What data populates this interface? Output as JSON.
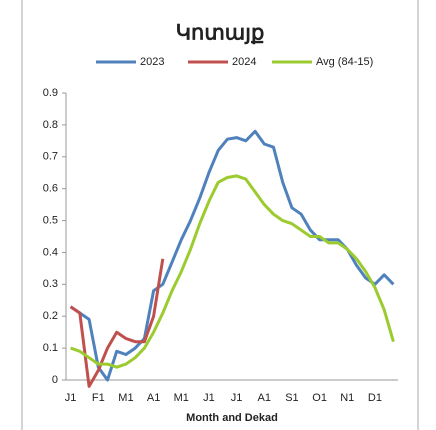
{
  "chart_data": {
    "type": "line",
    "title": "Կոտայք",
    "x_label": "Month and Dekad",
    "categories": [
      "J1",
      null,
      null,
      "F1",
      null,
      null,
      "M1",
      null,
      null,
      "A1",
      null,
      null,
      "M1",
      null,
      null,
      "J1",
      null,
      null,
      "J1",
      null,
      null,
      "A1",
      null,
      null,
      "S1",
      null,
      null,
      "O1",
      null,
      null,
      "N1",
      null,
      null,
      "D1",
      null,
      null
    ],
    "series": [
      {
        "name": "2023",
        "color": "#4f81bd",
        "values": [
          0.23,
          0.21,
          0.19,
          0.04,
          0.0,
          0.09,
          0.08,
          0.1,
          0.13,
          0.28,
          0.3,
          0.37,
          0.44,
          0.5,
          0.57,
          0.65,
          0.72,
          0.755,
          0.76,
          0.75,
          0.78,
          0.74,
          0.73,
          0.62,
          0.54,
          0.52,
          0.47,
          0.44,
          0.44,
          0.44,
          0.41,
          0.36,
          0.32,
          0.3,
          0.33,
          0.3
        ]
      },
      {
        "name": "2024",
        "color": "#c0504d",
        "values": [
          0.23,
          0.21,
          -0.02,
          0.03,
          0.1,
          0.15,
          0.13,
          0.12,
          0.12,
          0.2,
          0.38,
          null,
          null,
          null,
          null,
          null,
          null,
          null,
          null,
          null,
          null,
          null,
          null,
          null,
          null,
          null,
          null,
          null,
          null,
          null,
          null,
          null,
          null,
          null,
          null,
          null
        ]
      },
      {
        "name": "Avg (84-15)",
        "color": "#9bcb2f",
        "values": [
          0.1,
          0.09,
          0.07,
          0.05,
          0.05,
          0.04,
          0.05,
          0.07,
          0.1,
          0.15,
          0.21,
          0.28,
          0.34,
          0.41,
          0.49,
          0.56,
          0.62,
          0.635,
          0.64,
          0.63,
          0.59,
          0.55,
          0.52,
          0.5,
          0.49,
          0.47,
          0.45,
          0.45,
          0.43,
          0.43,
          0.41,
          0.38,
          0.34,
          0.29,
          0.22,
          0.12
        ]
      }
    ],
    "ylim": [
      0,
      0.9
    ],
    "yticks": [
      0,
      0.1,
      0.2,
      0.3,
      0.4,
      0.5,
      0.6,
      0.7,
      0.8,
      0.9
    ],
    "legend": "top"
  }
}
